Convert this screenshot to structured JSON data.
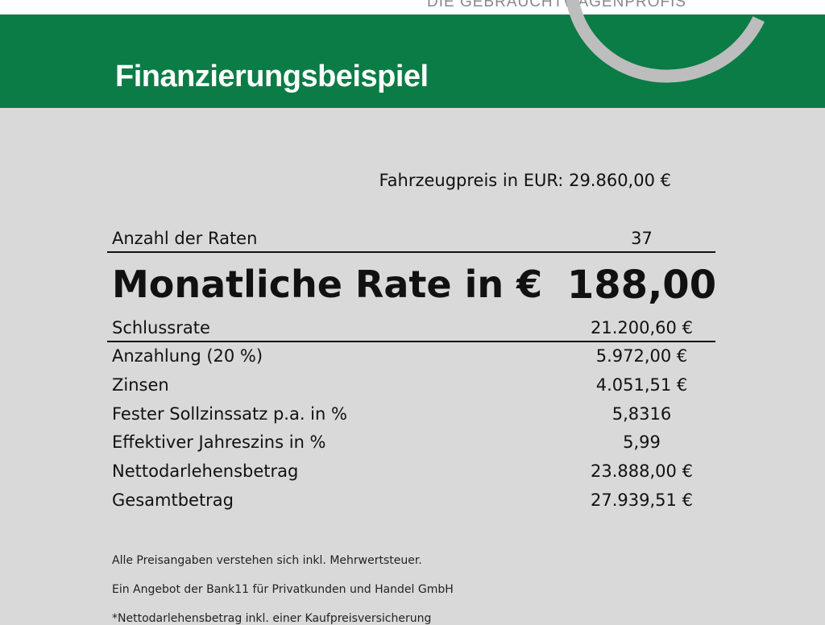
{
  "header": {
    "logo_tagline": "DIE GEBRAUCHTWAGENPROFIS",
    "title": "Finanzierungsbeispiel",
    "brand_color": "#0b7c46"
  },
  "price": {
    "label": "Fahrzeugpreis in EUR:",
    "value": "29.860,00 €"
  },
  "rows": [
    {
      "label": "Anzahl der Raten",
      "value": "37"
    },
    {
      "label": "Monatliche Rate in €",
      "value": "188,00"
    },
    {
      "label": "Schlussrate",
      "value": "21.200,60 €"
    },
    {
      "label": "Anzahlung (20 %)",
      "value": "5.972,00 €"
    },
    {
      "label": "Zinsen",
      "value": "4.051,51 €"
    },
    {
      "label": "Fester Sollzinssatz p.a. in %",
      "value": "5,8316"
    },
    {
      "label": "Effektiver Jahreszins in %",
      "value": "5,99"
    },
    {
      "label": "Nettodarlehensbetrag",
      "value": "23.888,00 €"
    },
    {
      "label": "Gesamtbetrag",
      "value": "27.939,51 €"
    }
  ],
  "notes": [
    "Alle Preisangaben verstehen sich inkl. Mehrwertsteuer.",
    "Ein Angebot der Bank11 für Privatkunden und Handel GmbH",
    "*Nettodarlehensbetrag inkl. einer Kaufpreisversicherung"
  ]
}
